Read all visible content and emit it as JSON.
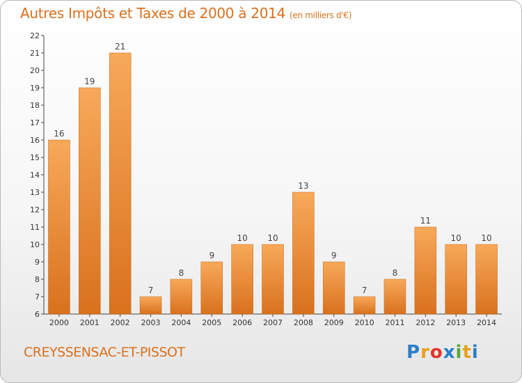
{
  "title": "Autres Impôts et Taxes de 2000 à 2014",
  "subtitle": "(en milliers d'€)",
  "commune": "CREYSSENSAC-ET-PISSOT",
  "logo": {
    "letters": [
      "P",
      "r",
      "o",
      "x",
      "i",
      "t",
      "i"
    ],
    "colors": [
      "#2a7fc9",
      "#e8a01c",
      "#e5352b",
      "#2a7fc9",
      "#5aa832",
      "#e8a01c",
      "#2a7fc9"
    ]
  },
  "colors": {
    "bar_light": "#f7a95a",
    "bar_dark": "#d9711d",
    "title": "#d9711d"
  },
  "chart_data": {
    "type": "bar",
    "categories": [
      "2000",
      "2001",
      "2002",
      "2003",
      "2004",
      "2005",
      "2006",
      "2007",
      "2008",
      "2009",
      "2010",
      "2011",
      "2012",
      "2013",
      "2014"
    ],
    "values": [
      16,
      19,
      21,
      7,
      8,
      9,
      10,
      10,
      13,
      9,
      7,
      8,
      11,
      10,
      10
    ],
    "yticks": [
      6,
      7,
      8,
      9,
      10,
      11,
      12,
      13,
      14,
      15,
      16,
      17,
      18,
      19,
      20,
      21,
      22
    ],
    "ytick_labels": [
      "6",
      "7",
      "8",
      "9",
      "10",
      "11",
      "12",
      "13",
      "14",
      "15",
      "16",
      "17",
      "18",
      "19",
      "20",
      "21",
      "22"
    ],
    "ylim": [
      6,
      22
    ],
    "grid": false
  }
}
